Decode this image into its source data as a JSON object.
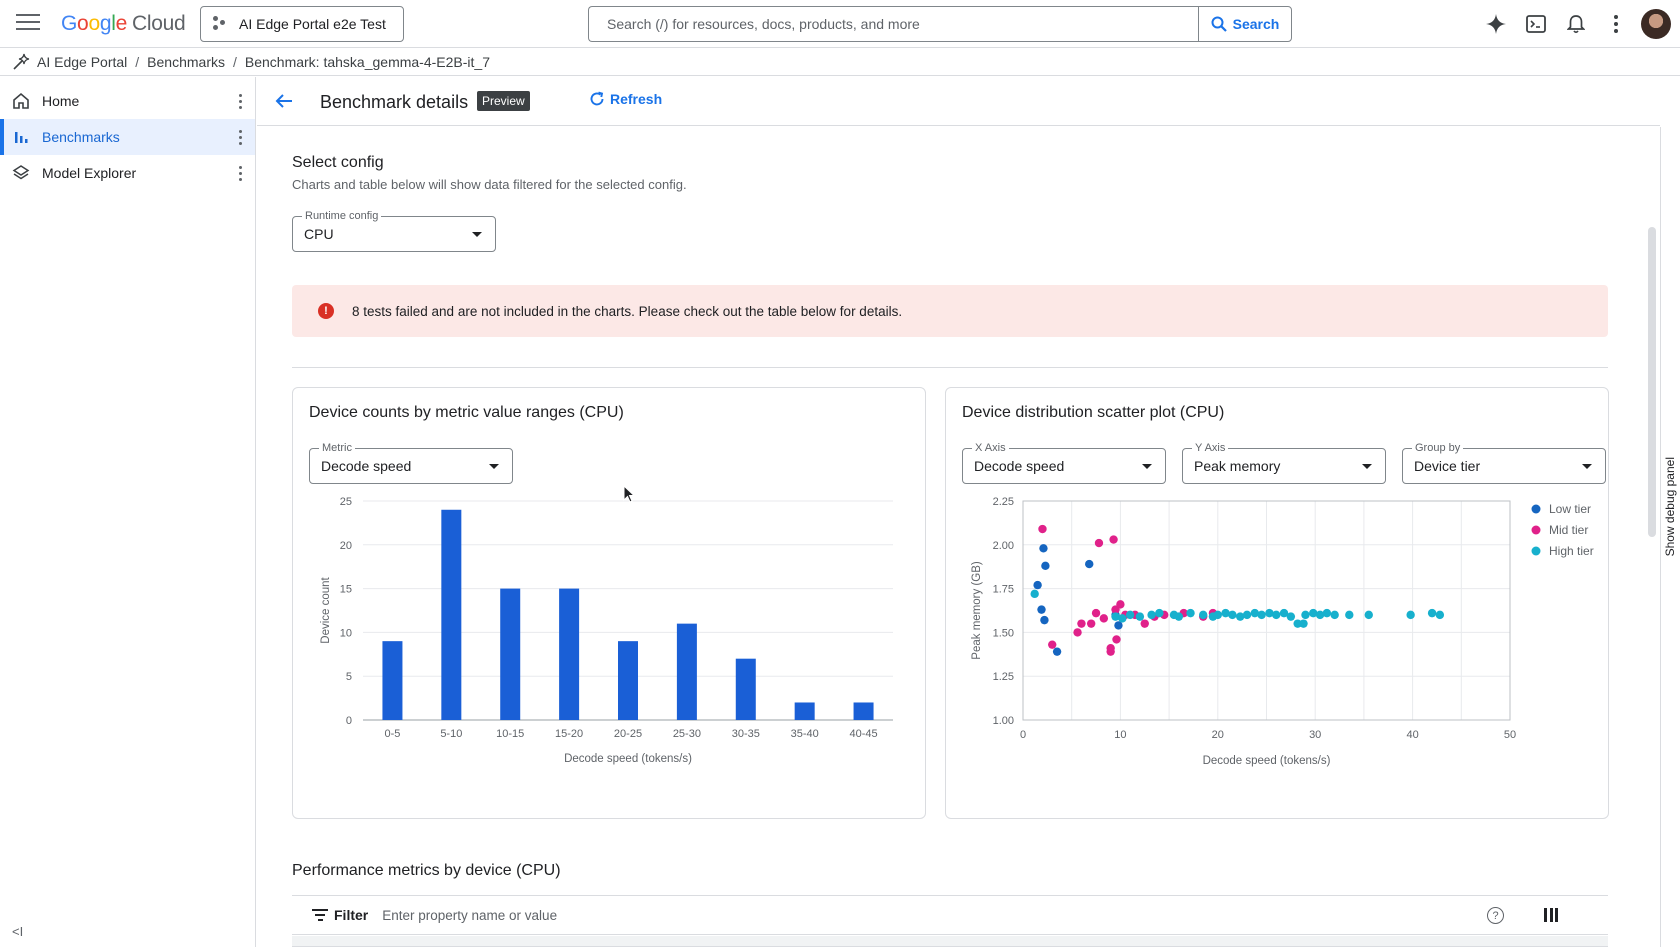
{
  "header": {
    "logo_google": [
      "G",
      "o",
      "o",
      "g",
      "l",
      "e"
    ],
    "logo_cloud": "Cloud",
    "project": "AI Edge Portal e2e Test",
    "search_placeholder": "Search (/) for resources, docs, products, and more",
    "search_button": "Search"
  },
  "breadcrumb": [
    "AI Edge Portal",
    "Benchmarks",
    "Benchmark: tahska_gemma-4-E2B-it_7"
  ],
  "sidebar": {
    "items": [
      {
        "label": "Home",
        "icon": "home-icon"
      },
      {
        "label": "Benchmarks",
        "icon": "bar-chart-icon",
        "active": true
      },
      {
        "label": "Model Explorer",
        "icon": "layers-icon"
      }
    ],
    "collapse": "<I"
  },
  "page": {
    "title": "Benchmark details",
    "badge": "Preview",
    "refresh": "Refresh"
  },
  "config": {
    "title": "Select config",
    "subtitle": "Charts and table below will show data filtered for the selected config.",
    "runtime_label": "Runtime config",
    "runtime_value": "CPU"
  },
  "error_banner": "8 tests failed and are not included in the charts. Please check out the table below for details.",
  "histogram_card": {
    "title": "Device counts by metric value ranges (CPU)",
    "metric_label": "Metric",
    "metric_value": "Decode speed"
  },
  "scatter_card": {
    "title": "Device distribution scatter plot (CPU)",
    "x_label": "X Axis",
    "x_value": "Decode speed",
    "y_label": "Y Axis",
    "y_value": "Peak memory",
    "group_label": "Group by",
    "group_value": "Device tier"
  },
  "chart_data": [
    {
      "type": "bar",
      "categories": [
        "0-5",
        "5-10",
        "10-15",
        "15-20",
        "20-25",
        "25-30",
        "30-35",
        "35-40",
        "40-45"
      ],
      "values": [
        9,
        24,
        15,
        15,
        9,
        11,
        7,
        2,
        2
      ],
      "xlabel": "Decode speed (tokens/s)",
      "ylabel": "Device count",
      "ylim": [
        0,
        25
      ],
      "yticks": [
        0,
        5,
        10,
        15,
        20,
        25
      ],
      "color": "#1a5fd6"
    },
    {
      "type": "scatter",
      "xlabel": "Decode speed (tokens/s)",
      "ylabel": "Peak memory (GB)",
      "xlim": [
        0,
        50
      ],
      "ylim": [
        1.0,
        2.25
      ],
      "xticks": [
        0,
        10,
        20,
        30,
        40,
        50
      ],
      "yticks": [
        "1.00",
        "1.25",
        "1.50",
        "1.75",
        "2.00",
        "2.25"
      ],
      "legend_position": "top-right",
      "series": [
        {
          "name": "Low tier",
          "color": "#1565c0",
          "points": [
            [
              1.5,
              1.77
            ],
            [
              1.9,
              1.63
            ],
            [
              2.1,
              1.98
            ],
            [
              2.3,
              1.88
            ],
            [
              2.2,
              1.57
            ],
            [
              3.5,
              1.39
            ],
            [
              6.8,
              1.89
            ],
            [
              9.8,
              1.54
            ],
            [
              9.5,
              1.6
            ]
          ]
        },
        {
          "name": "Mid tier",
          "color": "#e0218a",
          "points": [
            [
              2.0,
              2.09
            ],
            [
              3.0,
              1.43
            ],
            [
              5.6,
              1.5
            ],
            [
              6.0,
              1.55
            ],
            [
              7.0,
              1.55
            ],
            [
              7.5,
              1.61
            ],
            [
              7.8,
              2.01
            ],
            [
              8.3,
              1.58
            ],
            [
              9.0,
              1.41
            ],
            [
              9.0,
              1.39
            ],
            [
              9.3,
              2.03
            ],
            [
              9.5,
              1.63
            ],
            [
              9.6,
              1.46
            ],
            [
              10.0,
              1.66
            ],
            [
              10.5,
              1.6
            ],
            [
              11.5,
              1.6
            ],
            [
              12.5,
              1.55
            ],
            [
              13.5,
              1.59
            ],
            [
              14.5,
              1.6
            ],
            [
              16.5,
              1.61
            ],
            [
              18.5,
              1.59
            ],
            [
              19.5,
              1.61
            ]
          ]
        },
        {
          "name": "High tier",
          "color": "#17b0cd",
          "points": [
            [
              1.2,
              1.72
            ],
            [
              9.5,
              1.59
            ],
            [
              10.2,
              1.58
            ],
            [
              11.0,
              1.6
            ],
            [
              12.0,
              1.59
            ],
            [
              13.2,
              1.6
            ],
            [
              14.0,
              1.61
            ],
            [
              15.5,
              1.6
            ],
            [
              16.0,
              1.59
            ],
            [
              17.2,
              1.61
            ],
            [
              18.5,
              1.6
            ],
            [
              19.5,
              1.59
            ],
            [
              20.0,
              1.6
            ],
            [
              20.8,
              1.61
            ],
            [
              21.5,
              1.6
            ],
            [
              22.3,
              1.59
            ],
            [
              23.0,
              1.6
            ],
            [
              23.8,
              1.61
            ],
            [
              24.5,
              1.6
            ],
            [
              25.3,
              1.61
            ],
            [
              26.0,
              1.6
            ],
            [
              26.8,
              1.61
            ],
            [
              27.5,
              1.59
            ],
            [
              28.2,
              1.55
            ],
            [
              28.8,
              1.55
            ],
            [
              29.0,
              1.6
            ],
            [
              29.8,
              1.61
            ],
            [
              30.5,
              1.6
            ],
            [
              31.2,
              1.61
            ],
            [
              32.0,
              1.6
            ],
            [
              33.5,
              1.6
            ],
            [
              35.5,
              1.6
            ],
            [
              39.8,
              1.6
            ],
            [
              42.0,
              1.61
            ],
            [
              42.8,
              1.6
            ]
          ]
        }
      ]
    }
  ],
  "table": {
    "title": "Performance metrics by device (CPU)",
    "filter_label": "Filter",
    "filter_placeholder": "Enter property name or value"
  },
  "debug_panel": "Show debug panel",
  "colors": {
    "accent": "#1a73e8",
    "error_bg": "#fce8e6",
    "error_icon": "#d93025"
  }
}
